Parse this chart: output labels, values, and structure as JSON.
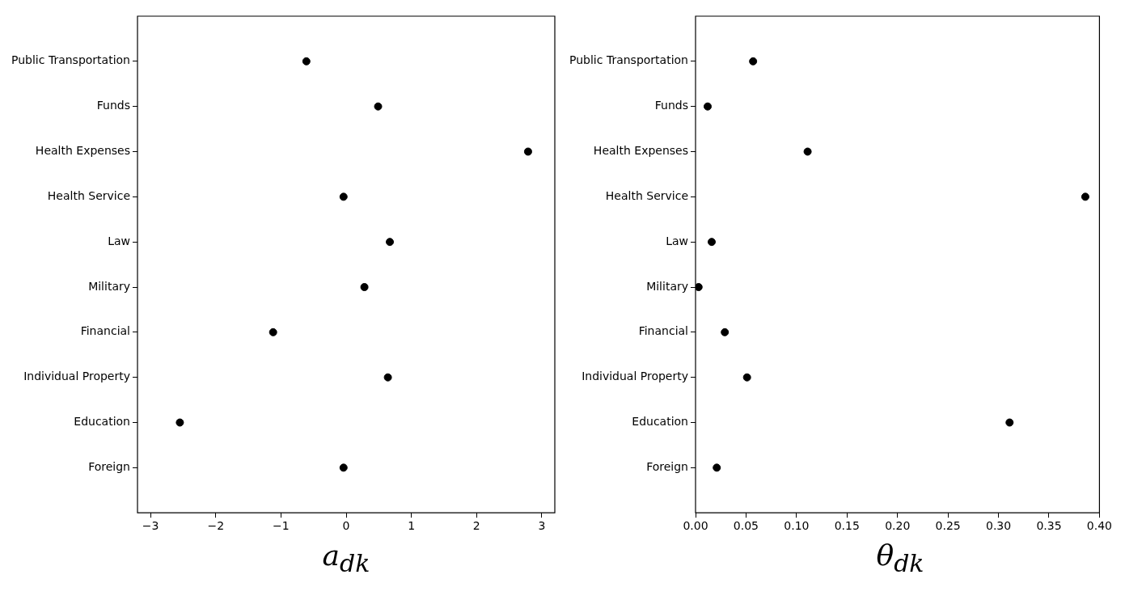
{
  "chart_data": [
    {
      "type": "scatter",
      "orientation": "horizontal",
      "categories": [
        "Public Transportation",
        "Funds",
        "Health Expenses",
        "Health Service",
        "Law",
        "Military",
        "Financial",
        "Individual Property",
        "Education",
        "Foreign"
      ],
      "values": [
        -0.61,
        0.49,
        2.79,
        -0.04,
        0.67,
        0.28,
        -1.12,
        0.64,
        -2.55,
        -0.04
      ],
      "color": "#000000",
      "marker": "circle",
      "xlabel": "a$_{dk}$",
      "xlim": [
        -3.2,
        3.2
      ],
      "xticks": [
        {
          "value": -3,
          "label": "−3"
        },
        {
          "value": -2,
          "label": "−2"
        },
        {
          "value": -1,
          "label": "−1"
        },
        0,
        1,
        2,
        3
      ],
      "grid": false,
      "legend": false
    },
    {
      "type": "scatter",
      "orientation": "horizontal",
      "categories": [
        "Public Transportation",
        "Funds",
        "Health Expenses",
        "Health Service",
        "Law",
        "Military",
        "Financial",
        "Individual Property",
        "Education",
        "Foreign"
      ],
      "values": [
        0.057,
        0.012,
        0.111,
        0.386,
        0.016,
        0.003,
        0.029,
        0.051,
        0.311,
        0.021
      ],
      "color": "#000000",
      "marker": "circle",
      "xlabel": "θ$_{dk}$",
      "xlim": [
        0,
        0.4
      ],
      "xticks": [
        {
          "value": 0,
          "label": "0.00"
        },
        {
          "value": 0.05,
          "label": "0.05"
        },
        {
          "value": 0.1,
          "label": "0.10"
        },
        {
          "value": 0.15,
          "label": "0.15"
        },
        {
          "value": 0.2,
          "label": "0.20"
        },
        {
          "value": 0.25,
          "label": "0.25"
        },
        {
          "value": 0.3,
          "label": "0.30"
        },
        {
          "value": 0.35,
          "label": "0.35"
        },
        {
          "value": 0.4,
          "label": "0.40"
        }
      ],
      "grid": false,
      "legend": false
    }
  ]
}
